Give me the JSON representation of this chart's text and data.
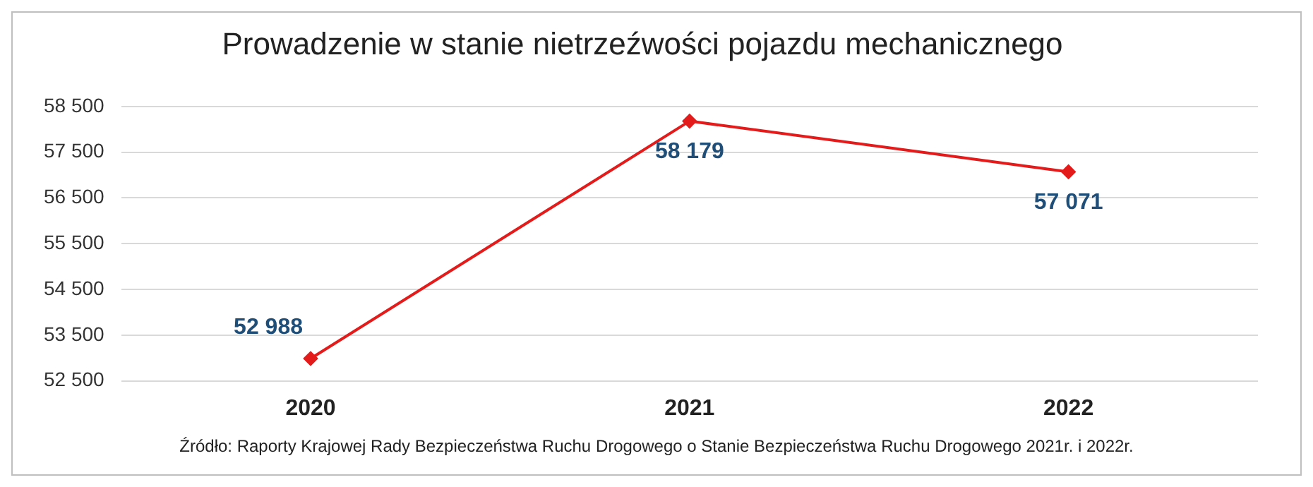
{
  "chart_data": {
    "type": "line",
    "title": "Prowadzenie w stanie nietrzeźwości pojazdu mechanicznego",
    "categories": [
      "2020",
      "2021",
      "2022"
    ],
    "series": [
      {
        "color": "#e31b1b",
        "values": [
          52988,
          58179,
          57071
        ],
        "value_labels": [
          "52 988",
          "58 179",
          "57 071"
        ]
      }
    ],
    "ylim": [
      52500,
      58500
    ],
    "yticks": [
      {
        "value": 52500,
        "label": "52 500"
      },
      {
        "value": 53500,
        "label": "53 500"
      },
      {
        "value": 54500,
        "label": "54 500"
      },
      {
        "value": 55500,
        "label": "55 500"
      },
      {
        "value": 56500,
        "label": "56 500"
      },
      {
        "value": 57500,
        "label": "57 500"
      },
      {
        "value": 58500,
        "label": "58 500"
      }
    ],
    "grid": "y",
    "legend": false,
    "marker": "diamond",
    "line_style": "solid",
    "annotations": [
      "Źródło: Raporty Krajowej Rady Bezpieczeństwa Ruchu Drogowego  o Stanie Bezpieczeństwa Ruchu Drogowego 2021r. i 2022r."
    ]
  }
}
